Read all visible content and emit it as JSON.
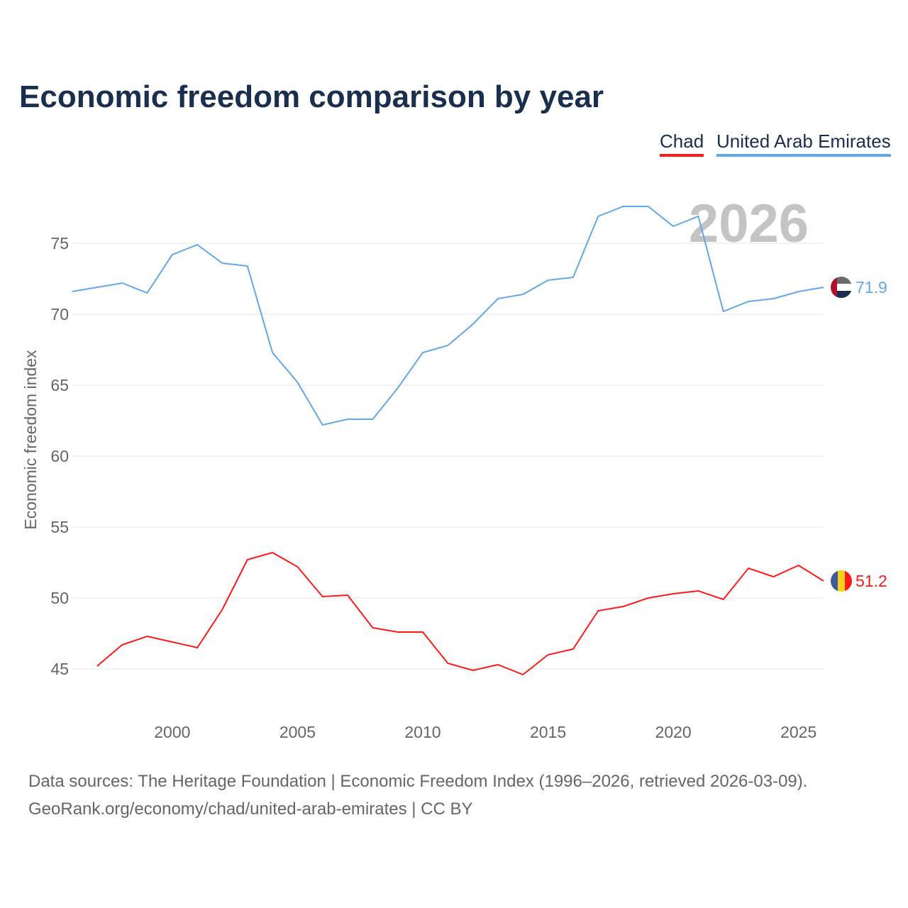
{
  "title": "Economic freedom comparison by year",
  "footer": {
    "line1": "Data sources: The Heritage Foundation | Economic Freedom Index (1996–2026, retrieved 2026-03-09).",
    "line2": "GeoRank.org/economy/chad/united-arab-emirates | CC BY"
  },
  "chart_data": {
    "type": "line",
    "title": "Economic freedom comparison by year",
    "xlabel": "",
    "ylabel": "Economic freedom index",
    "year_watermark": "2026",
    "xlim": [
      1996,
      2026
    ],
    "ylim": [
      42,
      80.5
    ],
    "xticks": [
      "2000",
      "2005",
      "2010",
      "2015",
      "2020",
      "2025"
    ],
    "yticks": [
      "45",
      "50",
      "55",
      "60",
      "65",
      "70",
      "75"
    ],
    "grid": true,
    "legend_position": "top-right",
    "series": [
      {
        "name": "Chad",
        "color": "#ff1a1a",
        "end_label": "51.2",
        "flag": "chad",
        "x": [
          1997,
          1998,
          1999,
          2000,
          2001,
          2002,
          2003,
          2004,
          2005,
          2006,
          2007,
          2008,
          2009,
          2010,
          2011,
          2012,
          2013,
          2014,
          2015,
          2016,
          2017,
          2018,
          2019,
          2020,
          2021,
          2022,
          2023,
          2024,
          2025,
          2026
        ],
        "values": [
          45.2,
          46.7,
          47.3,
          46.9,
          46.5,
          49.2,
          52.7,
          53.2,
          52.2,
          50.1,
          50.2,
          47.9,
          47.6,
          47.6,
          45.4,
          44.9,
          45.3,
          44.6,
          46.0,
          46.4,
          49.1,
          49.4,
          50.0,
          50.3,
          50.5,
          49.9,
          52.1,
          51.5,
          52.3,
          51.2
        ]
      },
      {
        "name": "United Arab Emirates",
        "color": "#62a8ea",
        "end_label": "71.9",
        "flag": "uae",
        "x": [
          1996,
          1997,
          1998,
          1999,
          2000,
          2001,
          2002,
          2003,
          2004,
          2005,
          2006,
          2007,
          2008,
          2009,
          2010,
          2011,
          2012,
          2013,
          2014,
          2015,
          2016,
          2017,
          2018,
          2019,
          2020,
          2021,
          2022,
          2023,
          2024,
          2025,
          2026
        ],
        "values": [
          71.6,
          71.9,
          72.2,
          71.5,
          74.2,
          74.9,
          73.6,
          73.4,
          67.3,
          65.2,
          62.2,
          62.6,
          62.6,
          64.8,
          67.3,
          67.8,
          69.3,
          71.1,
          71.4,
          72.4,
          72.6,
          76.9,
          77.6,
          77.6,
          76.2,
          76.9,
          70.2,
          70.9,
          71.1,
          71.6,
          71.9
        ]
      }
    ]
  }
}
